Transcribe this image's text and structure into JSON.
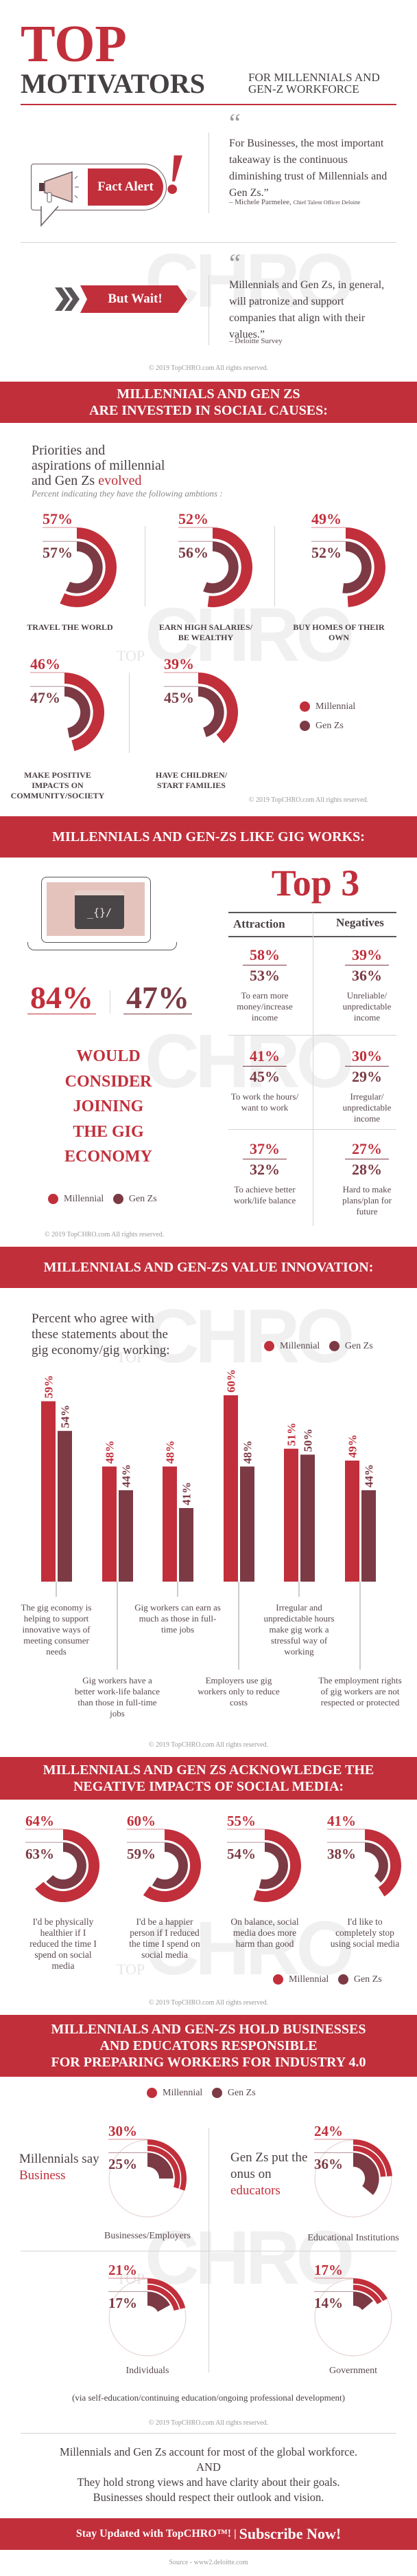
{
  "colors": {
    "millennial": "#c12f3b",
    "genz": "#7b3a44",
    "text": "#5a4a4e",
    "track": "#e6d6d2"
  },
  "watermark": "TOP CHRO",
  "copyright": "© 2019 TopCHRO.com All rights reserved.",
  "header": {
    "title_line1": "TOP",
    "title_line2": "MOTIVATORS",
    "subtitle_line1": "FOR MILLENNIALS AND",
    "subtitle_line2": "GEN-Z WORKFORCE"
  },
  "fact_alert": {
    "label": "Fact Alert",
    "icon": "megaphone-icon",
    "quote": "For Businesses, the most important takeaway is the continuous diminishing trust of Millennials and Gen Zs.”",
    "author": "– Michele Parmelee,",
    "role": "Chief Talent Officer Deloitte"
  },
  "but_wait": {
    "label": "But Wait!",
    "icon": "chevrons-right-icon",
    "quote": "Millennials and Gen Zs, in general, will patronize and support companies that align with their values.”",
    "author": "– Deloitte Survey"
  },
  "legend": {
    "millennial": "Millennial",
    "genz": "Gen Zs"
  },
  "social_causes": {
    "banner_line1": "MILLENNIALS AND GEN ZS",
    "banner_line2": "ARE INVESTED IN SOCIAL CAUSES:",
    "intro_line1": "Priorities and",
    "intro_line2": "aspirations of millennial",
    "intro_line3": "and Gen Zs ",
    "intro_highlight": "evolved",
    "note": "Percent indicating they have the following ambtions :",
    "items": [
      {
        "label": "TRAVEL THE WORLD",
        "millennial": 57,
        "genz": 57
      },
      {
        "label": "EARN HIGH SALARIES/ BE WEALTHY",
        "millennial": 52,
        "genz": 56
      },
      {
        "label": "BUY HOMES OF THEIR OWN",
        "millennial": 49,
        "genz": 52
      },
      {
        "label": "MAKE POSITIVE IMPACTS ON COMMUNITY/SOCIETY",
        "millennial": 46,
        "genz": 47
      },
      {
        "label": "HAVE CHILDREN/ START FAMILIES",
        "millennial": 39,
        "genz": 45
      }
    ]
  },
  "gig": {
    "banner": "MILLENNIALS AND GEN-ZS LIKE GIG WORKS:",
    "screen_code": "_{}/",
    "big_millennial": "84%",
    "big_genz": "47%",
    "statement": [
      "WOULD",
      "CONSIDER",
      "JOINING",
      "THE GIG",
      "ECONOMY"
    ],
    "top3_title": "Top 3",
    "col_attraction": "Attraction",
    "col_negatives": "Negatives",
    "attractions": [
      {
        "millennial": "58%",
        "genz": "53%",
        "label": "To earn more money/increase income"
      },
      {
        "millennial": "41%",
        "genz": "45%",
        "label": "To work the hours/ want to work"
      },
      {
        "millennial": "37%",
        "genz": "32%",
        "label": "To achieve better work/life balance"
      }
    ],
    "negatives": [
      {
        "millennial": "39%",
        "genz": "36%",
        "label": "Unreliable/ unpredictable income"
      },
      {
        "millennial": "30%",
        "genz": "29%",
        "label": "Irregular/ unpredictable income"
      },
      {
        "millennial": "27%",
        "genz": "28%",
        "label": "Hard to make plans/plan for future"
      }
    ]
  },
  "innovation": {
    "banner": "MILLENNIALS AND GEN-ZS VALUE INNOVATION:",
    "heading": [
      "Percent who agree with",
      "these statements about the",
      "gig economy/gig working:"
    ]
  },
  "chart_data": {
    "type": "bar",
    "categories": [
      "The gig economy is helping to support innovative ways of meeting consumer needs",
      "Gig workers have a better work-life balance than those in full-time jobs",
      "Gig workers can earn as much as those in full-time jobs",
      "Employers use gig workers only to reduce costs",
      "Irregular and unpredictable hours make gig work a stressful way of working",
      "The employment rights of gig workers are not respected or protected"
    ],
    "series": [
      {
        "name": "Millennial",
        "values": [
          59,
          48,
          48,
          60,
          51,
          49
        ]
      },
      {
        "name": "Gen Zs",
        "values": [
          54,
          44,
          41,
          48,
          50,
          44
        ]
      }
    ],
    "title": "Percent who agree with these statements about the gig economy/gig working:",
    "legend": "top-right",
    "grid": false
  },
  "social_media": {
    "banner_line1": "MILLENNIALS AND GEN ZS ACKNOWLEDGE THE",
    "banner_line2": "NEGATIVE IMPACTS OF SOCIAL MEDIA:",
    "items": [
      {
        "label": "I'd be physically healthier if I reduced the time I spend on social media",
        "millennial": 64,
        "genz": 63
      },
      {
        "label": "I'd be a happier person if I reduced the time I spend on social media",
        "millennial": 60,
        "genz": 59
      },
      {
        "label": "On balance, social media does more harm than good",
        "millennial": 55,
        "genz": 54
      },
      {
        "label": "I'd like to completely stop using social media",
        "millennial": 41,
        "genz": 38
      }
    ]
  },
  "industry": {
    "banner_line1": "MILLENNIALS AND GEN-ZS HOLD BUSINESSES",
    "banner_line2": "AND EDUCATORS RESPONSIBLE",
    "banner_line3": "FOR PREPARING WORKERS FOR INDUSTRY 4.0",
    "callout_left": "Millennials say ",
    "callout_left_highlight": "Business",
    "callout_right": "Gen Zs put the onus on ",
    "callout_right_highlight": "educators",
    "items": [
      {
        "label": "Businesses/Employers",
        "millennial": 30,
        "genz": 25
      },
      {
        "label": "Educational Institutions",
        "millennial": 24,
        "genz": 36
      },
      {
        "label": "Individuals",
        "millennial": 21,
        "genz": 17
      },
      {
        "label": "Government",
        "millennial": 17,
        "genz": 14
      }
    ],
    "note": "(via self-education/continuing education/ongoing professional development)"
  },
  "closing": {
    "line1": "Millennials and Gen Zs account for most of the global workforce.",
    "line2": "AND",
    "line3": "They hold strong views and have clarity about their goals.",
    "line4": "Businesses should respect their outlook and vision."
  },
  "subscribe": {
    "text": "Stay Updated with TopCHRO™! | ",
    "cta": "Subscribe Now!"
  },
  "source": "Source - www2.deloitte.com"
}
